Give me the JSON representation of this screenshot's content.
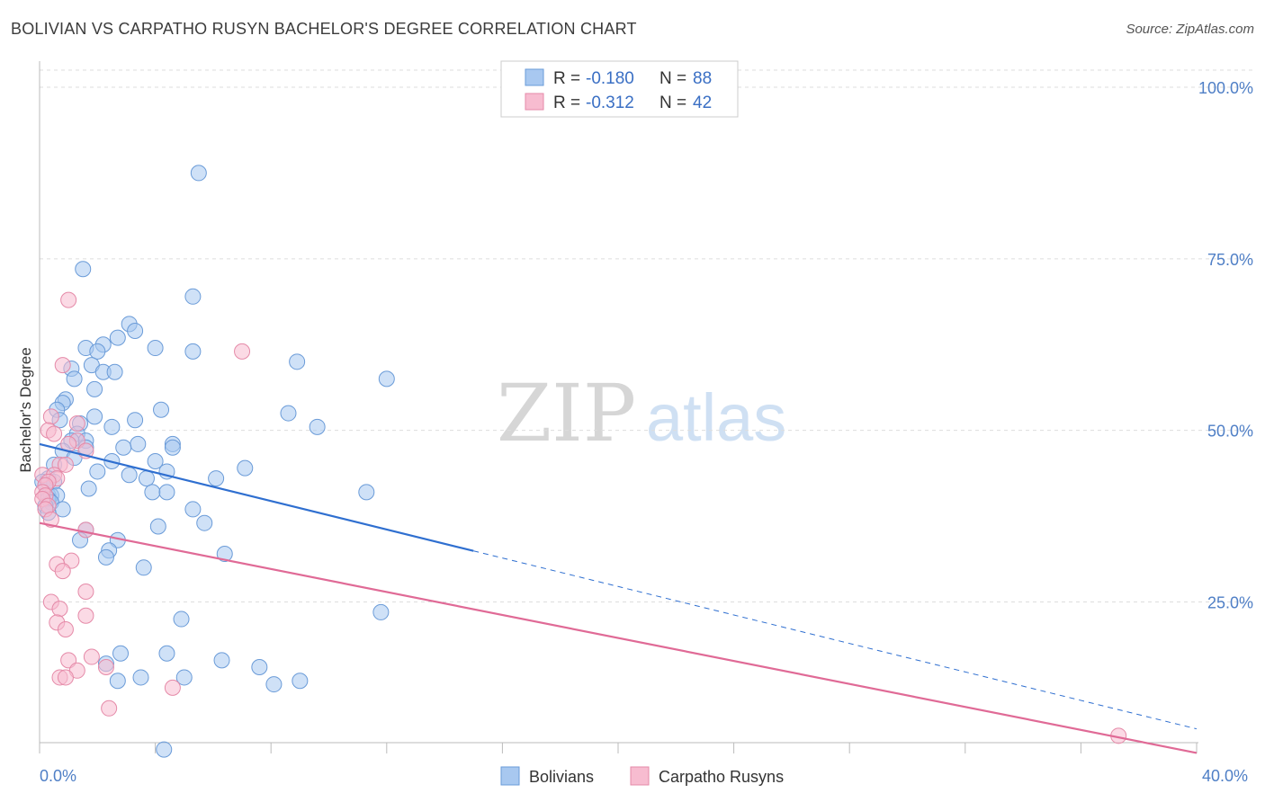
{
  "title": "BOLIVIAN VS CARPATHO RUSYN BACHELOR'S DEGREE CORRELATION CHART",
  "source": "Source: ZipAtlas.com",
  "watermark": {
    "part1": "ZIP",
    "part2": "atlas"
  },
  "colors": {
    "bolivians_fill": "#a8c8f0",
    "bolivians_stroke": "#6a9bd8",
    "bolivians_line": "#2f6fd0",
    "rusyns_fill": "#f7bcd0",
    "rusyns_stroke": "#e58aa8",
    "rusyns_line": "#e06a96",
    "tick_text": "#4f7fc6",
    "grid": "#dddddd"
  },
  "legend": {
    "rows": [
      {
        "r_label": "R =",
        "r_value": "-0.180",
        "n_label": "N =",
        "n_value": "88"
      },
      {
        "r_label": "R =",
        "r_value": "-0.312",
        "n_label": "N =",
        "n_value": "42"
      }
    ]
  },
  "bottom_legend": [
    "Bolivians",
    "Carpatho Rusyns"
  ],
  "chart_data": {
    "type": "scatter",
    "title": "BOLIVIAN VS CARPATHO RUSYN BACHELOR'S DEGREE CORRELATION CHART",
    "xlabel": "",
    "ylabel": "Bachelor's Degree",
    "xlim": [
      0,
      40
    ],
    "ylim": [
      0,
      100
    ],
    "x_tick_labels": [
      "0.0%",
      "40.0%"
    ],
    "y_tick_labels": [
      "100.0%",
      "75.0%",
      "50.0%",
      "25.0%"
    ],
    "y_ticks": [
      100,
      75,
      50,
      25
    ],
    "grid": true,
    "legend_placement": "top-center",
    "series": [
      {
        "name": "Bolivians",
        "r": -0.18,
        "n": 88,
        "trend": {
          "x_start": 0,
          "y_start": 48.0,
          "x_solid_end": 15,
          "x_dashed_end": 40,
          "y_end": 6.5
        },
        "points": [
          [
            5.5,
            87.5
          ],
          [
            1.5,
            73.5
          ],
          [
            5.3,
            69.5
          ],
          [
            3.1,
            65.5
          ],
          [
            3.3,
            64.5
          ],
          [
            2.7,
            63.5
          ],
          [
            2.2,
            62.5
          ],
          [
            1.6,
            62.0
          ],
          [
            4.0,
            62.0
          ],
          [
            2.0,
            61.5
          ],
          [
            5.3,
            61.5
          ],
          [
            8.9,
            60.0
          ],
          [
            1.8,
            59.5
          ],
          [
            1.1,
            59.0
          ],
          [
            2.2,
            58.5
          ],
          [
            2.6,
            58.5
          ],
          [
            12.0,
            57.5
          ],
          [
            1.2,
            57.5
          ],
          [
            1.9,
            56.0
          ],
          [
            0.9,
            54.5
          ],
          [
            0.8,
            54.0
          ],
          [
            0.6,
            53.0
          ],
          [
            4.2,
            53.0
          ],
          [
            8.6,
            52.5
          ],
          [
            1.9,
            52.0
          ],
          [
            3.3,
            51.5
          ],
          [
            0.7,
            51.5
          ],
          [
            1.4,
            51.0
          ],
          [
            2.5,
            50.5
          ],
          [
            9.6,
            50.5
          ],
          [
            1.3,
            49.5
          ],
          [
            1.6,
            48.5
          ],
          [
            1.1,
            48.5
          ],
          [
            3.4,
            48.0
          ],
          [
            4.6,
            48.0
          ],
          [
            2.9,
            47.5
          ],
          [
            1.6,
            47.5
          ],
          [
            0.8,
            47.0
          ],
          [
            4.6,
            47.5
          ],
          [
            1.2,
            46.0
          ],
          [
            2.5,
            45.5
          ],
          [
            4.0,
            45.5
          ],
          [
            0.5,
            45.0
          ],
          [
            7.1,
            44.5
          ],
          [
            2.0,
            44.0
          ],
          [
            4.4,
            44.0
          ],
          [
            3.1,
            43.5
          ],
          [
            3.7,
            43.0
          ],
          [
            6.1,
            43.0
          ],
          [
            0.3,
            43.0
          ],
          [
            0.1,
            42.5
          ],
          [
            0.5,
            42.5
          ],
          [
            0.2,
            42.0
          ],
          [
            1.7,
            41.5
          ],
          [
            3.9,
            41.0
          ],
          [
            4.4,
            41.0
          ],
          [
            11.3,
            41.0
          ],
          [
            0.3,
            40.5
          ],
          [
            0.4,
            40.5
          ],
          [
            0.6,
            40.5
          ],
          [
            0.3,
            40.0
          ],
          [
            0.4,
            39.5
          ],
          [
            0.2,
            39.0
          ],
          [
            5.3,
            38.5
          ],
          [
            0.8,
            38.5
          ],
          [
            0.3,
            38.0
          ],
          [
            5.7,
            36.5
          ],
          [
            4.1,
            36.0
          ],
          [
            1.6,
            35.5
          ],
          [
            1.4,
            34.0
          ],
          [
            2.7,
            34.0
          ],
          [
            2.4,
            32.5
          ],
          [
            6.4,
            32.0
          ],
          [
            2.3,
            31.5
          ],
          [
            3.6,
            30.0
          ],
          [
            11.8,
            23.5
          ],
          [
            4.9,
            22.5
          ],
          [
            2.8,
            17.5
          ],
          [
            4.4,
            17.5
          ],
          [
            6.3,
            16.5
          ],
          [
            2.3,
            16.0
          ],
          [
            7.6,
            15.5
          ],
          [
            3.5,
            14.0
          ],
          [
            5.0,
            14.0
          ],
          [
            2.7,
            13.5
          ],
          [
            9.0,
            13.5
          ],
          [
            8.1,
            13.0
          ],
          [
            4.3,
            3.5
          ]
        ]
      },
      {
        "name": "Carpatho Rusyns",
        "r": -0.312,
        "n": 42,
        "trend": {
          "x_start": 0,
          "y_start": 36.5,
          "x_end": 40,
          "y_end": 3.0
        },
        "points": [
          [
            1.0,
            69.0
          ],
          [
            7.0,
            61.5
          ],
          [
            0.8,
            59.5
          ],
          [
            0.4,
            52.0
          ],
          [
            1.3,
            51.0
          ],
          [
            0.3,
            50.0
          ],
          [
            0.5,
            49.5
          ],
          [
            1.3,
            48.5
          ],
          [
            1.0,
            48.0
          ],
          [
            1.6,
            47.0
          ],
          [
            0.7,
            45.0
          ],
          [
            0.9,
            45.0
          ],
          [
            0.1,
            43.5
          ],
          [
            0.5,
            43.5
          ],
          [
            0.6,
            43.0
          ],
          [
            0.3,
            42.5
          ],
          [
            0.2,
            42.0
          ],
          [
            0.1,
            41.0
          ],
          [
            0.2,
            40.5
          ],
          [
            0.1,
            40.0
          ],
          [
            0.3,
            39.0
          ],
          [
            0.2,
            38.5
          ],
          [
            0.4,
            37.0
          ],
          [
            1.6,
            35.5
          ],
          [
            1.1,
            31.0
          ],
          [
            0.6,
            30.5
          ],
          [
            0.8,
            29.5
          ],
          [
            1.6,
            26.5
          ],
          [
            0.4,
            25.0
          ],
          [
            0.7,
            24.0
          ],
          [
            1.6,
            23.0
          ],
          [
            0.6,
            22.0
          ],
          [
            0.9,
            21.0
          ],
          [
            1.8,
            17.0
          ],
          [
            1.0,
            16.5
          ],
          [
            1.3,
            15.0
          ],
          [
            2.3,
            15.5
          ],
          [
            0.7,
            14.0
          ],
          [
            0.9,
            14.0
          ],
          [
            4.6,
            12.5
          ],
          [
            2.4,
            9.5
          ],
          [
            37.3,
            5.5
          ]
        ]
      }
    ]
  }
}
